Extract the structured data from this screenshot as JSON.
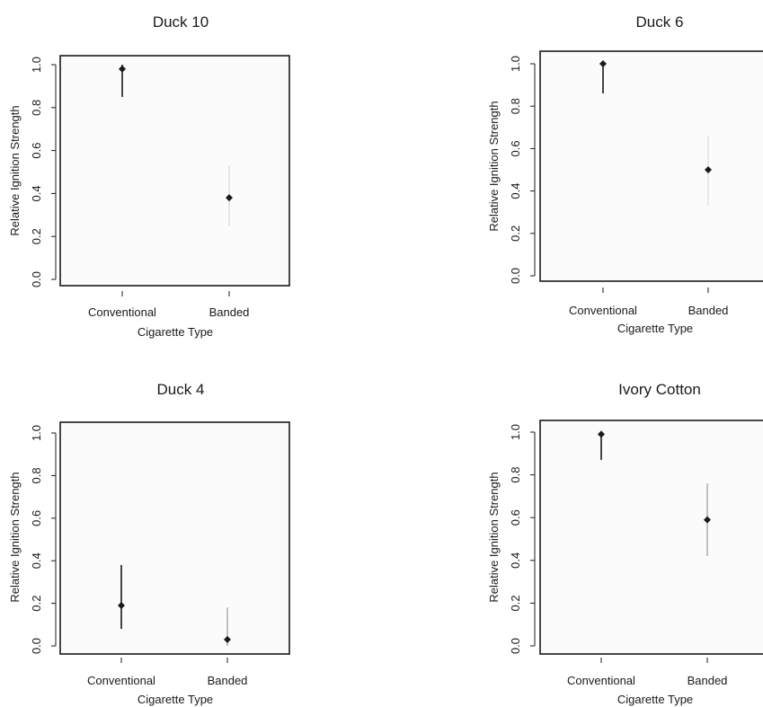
{
  "figure": {
    "ylabel": "Relative Ignition Strength",
    "xlabel": "Cigarette Type"
  },
  "chart_data": [
    {
      "type": "scatter",
      "title": "Duck 10",
      "xlabel": "Cigarette Type",
      "ylabel": "Relative Ignition Strength",
      "categories": [
        "Conventional",
        "Banded"
      ],
      "values": [
        0.98,
        0.38
      ],
      "error_low": [
        0.85,
        0.25
      ],
      "error_high": [
        1.0,
        0.53
      ],
      "error_bar_colors": [
        "#1a1a1a",
        "#d9d9d9"
      ],
      "ylim": [
        0,
        1
      ],
      "yticks": [
        "0.0",
        "0.2",
        "0.4",
        "0.6",
        "0.8",
        "1.0"
      ],
      "grid": false
    },
    {
      "type": "scatter",
      "title": "Duck 6",
      "xlabel": "Cigarette Type",
      "ylabel": "Relative Ignition Strength",
      "categories": [
        "Conventional",
        "Banded"
      ],
      "values": [
        1.0,
        0.5
      ],
      "error_low": [
        0.86,
        0.33
      ],
      "error_high": [
        1.0,
        0.66
      ],
      "error_bar_colors": [
        "#1a1a1a",
        "#dddddd"
      ],
      "ylim": [
        0,
        1
      ],
      "yticks": [
        "0.0",
        "0.2",
        "0.4",
        "0.6",
        "0.8",
        "1.0"
      ],
      "grid": false
    },
    {
      "type": "scatter",
      "title": "Duck 4",
      "xlabel": "Cigarette Type",
      "ylabel": "Relative Ignition Strength",
      "categories": [
        "Conventional",
        "Banded"
      ],
      "values": [
        0.19,
        0.03
      ],
      "error_low": [
        0.08,
        0.0
      ],
      "error_high": [
        0.38,
        0.18
      ],
      "error_bar_colors": [
        "#1a1a1a",
        "#9a9a9a"
      ],
      "ylim": [
        0,
        1
      ],
      "yticks": [
        "0.0",
        "0.2",
        "0.4",
        "0.6",
        "0.8",
        "1.0"
      ],
      "grid": false
    },
    {
      "type": "scatter",
      "title": "Ivory Cotton",
      "xlabel": "Cigarette Type",
      "ylabel": "Relative Ignition Strength",
      "categories": [
        "Conventional",
        "Banded"
      ],
      "values": [
        0.99,
        0.59
      ],
      "error_low": [
        0.87,
        0.42
      ],
      "error_high": [
        1.0,
        0.76
      ],
      "error_bar_colors": [
        "#1a1a1a",
        "#9a9a9a"
      ],
      "ylim": [
        0,
        1
      ],
      "yticks": [
        "0.0",
        "0.2",
        "0.4",
        "0.6",
        "0.8",
        "1.0"
      ],
      "grid": false
    }
  ]
}
